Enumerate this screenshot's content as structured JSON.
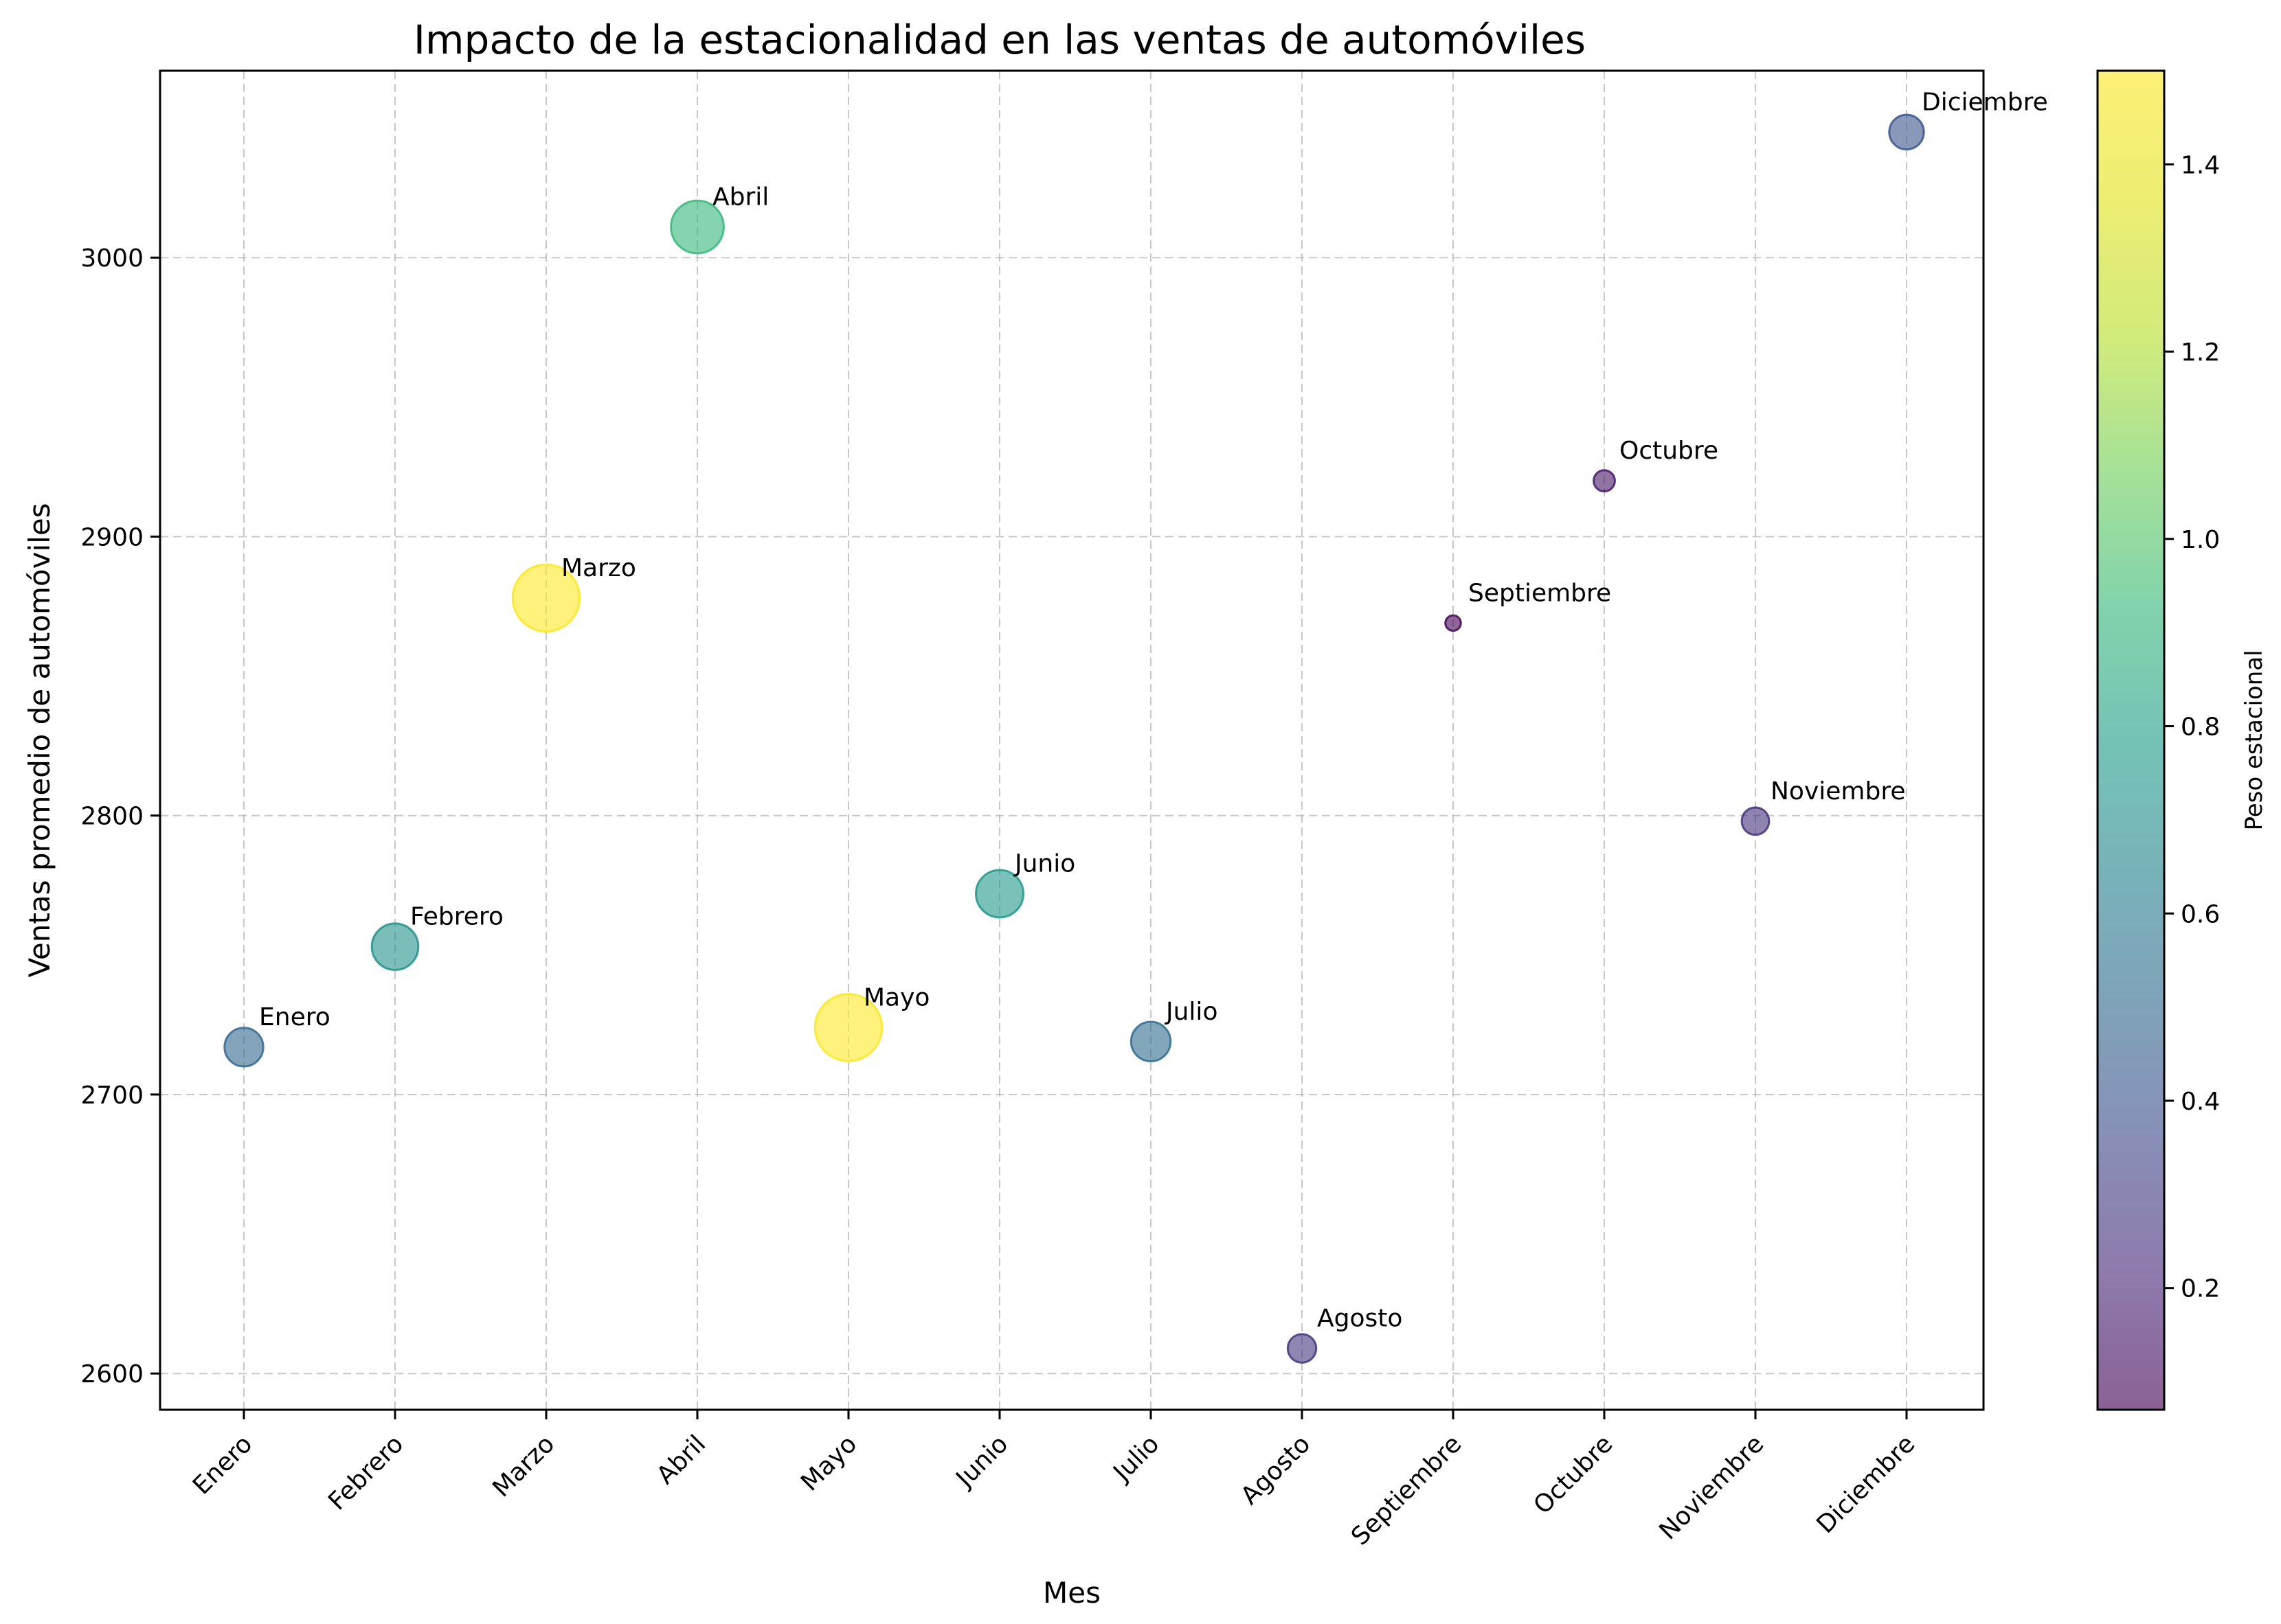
{
  "chart_data": {
    "type": "scatter",
    "title": "Impacto de la estacionalidad en las ventas de automóviles",
    "xlabel": "Mes",
    "ylabel": "Ventas promedio de automóviles",
    "categories": [
      "Enero",
      "Febrero",
      "Marzo",
      "Abril",
      "Mayo",
      "Junio",
      "Julio",
      "Agosto",
      "Septiembre",
      "Octubre",
      "Noviembre",
      "Diciembre"
    ],
    "points": [
      {
        "label": "Enero",
        "y": 2717,
        "weight": 0.5
      },
      {
        "label": "Febrero",
        "y": 2753,
        "weight": 0.72
      },
      {
        "label": "Marzo",
        "y": 2878,
        "weight": 1.5
      },
      {
        "label": "Abril",
        "y": 3011,
        "weight": 0.93
      },
      {
        "label": "Mayo",
        "y": 2724,
        "weight": 1.5
      },
      {
        "label": "Junio",
        "y": 2772,
        "weight": 0.75
      },
      {
        "label": "Julio",
        "y": 2719,
        "weight": 0.52
      },
      {
        "label": "Agosto",
        "y": 2609,
        "weight": 0.27
      },
      {
        "label": "Septiembre",
        "y": 2869,
        "weight": 0.08
      },
      {
        "label": "Octubre",
        "y": 2920,
        "weight": 0.15
      },
      {
        "label": "Noviembre",
        "y": 2798,
        "weight": 0.25
      },
      {
        "label": "Diciembre",
        "y": 3045,
        "weight": 0.4
      }
    ],
    "ylim": [
      2587,
      3067
    ],
    "yticks": [
      2600,
      2700,
      2800,
      2900,
      3000
    ],
    "grid": true,
    "colorbar": {
      "label": "Peso estacional",
      "range": [
        0.07,
        1.5
      ],
      "ticks": [
        0.2,
        0.4,
        0.6,
        0.8,
        1.0,
        1.2,
        1.4
      ],
      "colormap": "viridis"
    },
    "marker_alpha": 0.6
  }
}
